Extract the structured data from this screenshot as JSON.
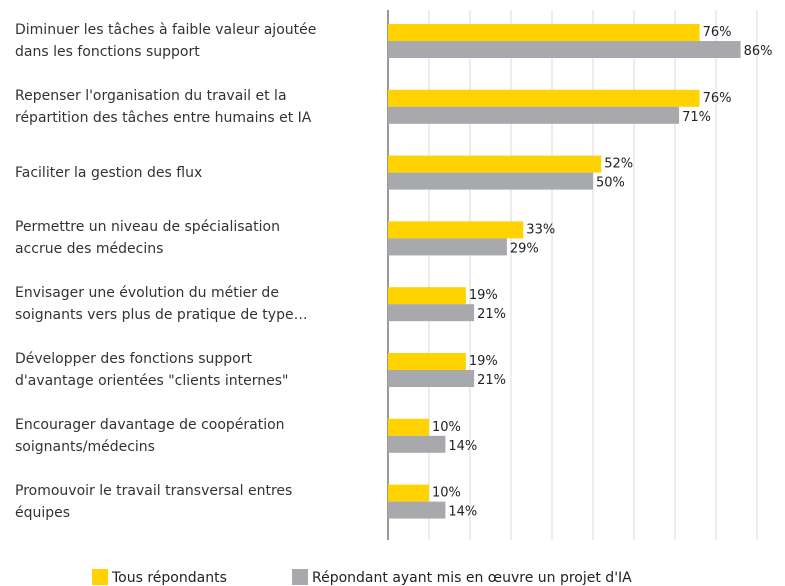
{
  "chart_data": {
    "type": "barh",
    "categories": [
      "Diminuer les tâches à faible valeur ajoutée\ndans les fonctions support",
      "Repenser l'organisation du travail et la\nrépartition des tâches entre humains et IA",
      "Faciliter la gestion des flux",
      "Permettre un niveau de spécialisation\naccrue des médecins",
      "Envisager une évolution du métier de\nsoignants vers plus de pratique de type…",
      "Développer des fonctions support\nd'avantage orientées \"clients internes\"",
      "Encourager davantage de coopération\nsoignants/médecins",
      "Promouvoir le travail transversal entres\néquipes"
    ],
    "series": [
      {
        "name": "Tous répondants",
        "color": "#ffd200",
        "values": [
          76,
          76,
          52,
          33,
          19,
          19,
          10,
          10
        ],
        "value_labels": [
          "76%",
          "76%",
          "52%",
          "33%",
          "19%",
          "19%",
          "10%",
          "10%"
        ]
      },
      {
        "name": "Répondant ayant mis en œuvre un projet d'IA",
        "color": "#a7a9ac",
        "values": [
          86,
          71,
          50,
          29,
          21,
          21,
          14,
          14
        ],
        "value_labels": [
          "86%",
          "71%",
          "50%",
          "29%",
          "21%",
          "21%",
          "14%",
          "14%"
        ]
      }
    ],
    "xlim": [
      0,
      90
    ],
    "xticks": [
      0,
      10,
      20,
      30,
      40,
      50,
      60,
      70,
      80,
      90
    ],
    "grid": true,
    "legend": "bottom"
  }
}
